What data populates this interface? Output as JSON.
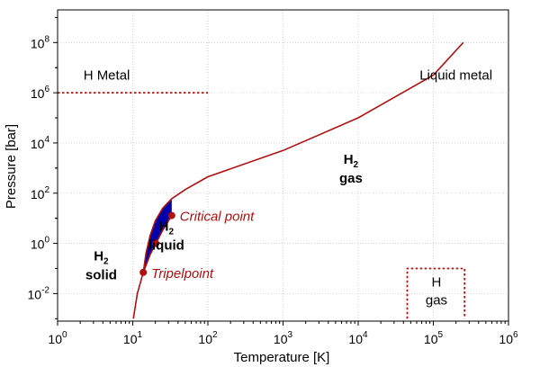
{
  "chart_data": {
    "type": "line",
    "title": "",
    "xlabel": "Temperature [K]",
    "ylabel": "Pressure [bar]",
    "x_scale": "log",
    "y_scale": "log",
    "xlim": [
      1,
      1000000
    ],
    "ylim": [
      0.0008,
      2000000000
    ],
    "x_ticks": [
      1,
      10,
      100,
      1000,
      10000,
      100000,
      1000000
    ],
    "x_tick_labels": [
      {
        "base": "10",
        "exp": "0"
      },
      {
        "base": "10",
        "exp": "1"
      },
      {
        "base": "10",
        "exp": "2"
      },
      {
        "base": "10",
        "exp": "3"
      },
      {
        "base": "10",
        "exp": "4"
      },
      {
        "base": "10",
        "exp": "5"
      },
      {
        "base": "10",
        "exp": "6"
      }
    ],
    "y_ticks": [
      0.01,
      1,
      100,
      10000,
      1000000,
      100000000
    ],
    "y_tick_labels": [
      {
        "base": "10",
        "exp": "-2"
      },
      {
        "base": "10",
        "exp": "0"
      },
      {
        "base": "10",
        "exp": "2"
      },
      {
        "base": "10",
        "exp": "4"
      },
      {
        "base": "10",
        "exp": "6"
      },
      {
        "base": "10",
        "exp": "8"
      }
    ],
    "grid": true,
    "colors": {
      "curve": "#b01010",
      "liquid_fill": "#0000a8",
      "annotation": "#b01010",
      "liquid_label": "#0000a8",
      "grid": "#cccccc"
    },
    "series": [
      {
        "kind": "solid-gas-boundary",
        "x": [
          10.2,
          11.5,
          13.8
        ],
        "y": [
          0.001,
          0.01,
          0.07
        ]
      },
      {
        "kind": "melting-curve",
        "x": [
          13.8,
          15,
          17,
          20,
          25,
          33,
          50,
          100,
          1000,
          10000,
          100000,
          250000
        ],
        "y": [
          0.07,
          0.4,
          2,
          8,
          25,
          60,
          140,
          450,
          5000,
          100000,
          5000000,
          100000000
        ]
      },
      {
        "kind": "vapor-pressure-curve",
        "x": [
          13.8,
          17,
          20.3,
          25,
          33
        ],
        "y": [
          0.07,
          0.35,
          1.0,
          3.3,
          12.9
        ]
      },
      {
        "kind": "metal-transition",
        "style": "dotted",
        "x": [
          1,
          100
        ],
        "y": [
          1000000,
          1000000
        ]
      },
      {
        "kind": "h-gas-box",
        "style": "dotted",
        "x": [
          45000,
          45000,
          260000,
          260000
        ],
        "y": [
          0.001,
          0.1,
          0.1,
          0.001
        ]
      }
    ],
    "points": [
      {
        "name": "triple-point",
        "label": "Tripelpoint",
        "x": 13.8,
        "y": 0.07
      },
      {
        "name": "liquid-point",
        "label": "",
        "x": 20.3,
        "y": 1.0
      },
      {
        "name": "critical-point",
        "label": "Critical point",
        "x": 33,
        "y": 12.9
      }
    ],
    "regions": [
      {
        "name": "h-metal",
        "text": "H Metal",
        "x": 4.5,
        "y": 5000000
      },
      {
        "name": "liquid-metal",
        "text": "Liquid metal",
        "x": 200000,
        "y": 5000000
      },
      {
        "name": "h2-gas",
        "formula": "H",
        "sub": "2",
        "text": "gas",
        "x": 8000,
        "y": 700
      },
      {
        "name": "h2-solid",
        "formula": "H",
        "sub": "2",
        "text": "solid",
        "x": 3.8,
        "y": 0.1
      },
      {
        "name": "h2-liquid",
        "formula": "H",
        "sub": "2",
        "text": "liquid",
        "x": 28,
        "y": 1.5
      },
      {
        "name": "h-gas",
        "text": "H",
        "text2": "gas",
        "x": 110000,
        "y": 0.01
      }
    ]
  }
}
